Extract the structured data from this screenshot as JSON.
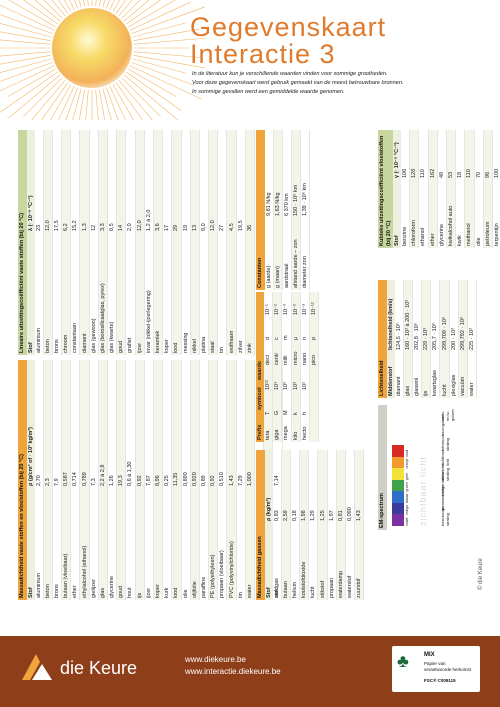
{
  "header": {
    "title_line1": "Gegevenskaart",
    "title_line2": "Interactie 3",
    "intro": [
      "In de literatuur kun je verschillende waarden vinden voor sommige grootheden.",
      "Voor deze gegevenskaart werd gebruik gemaakt van de meest betrouwbare bronnen.",
      "In sommige gevallen werd een gemiddelde waarde genomen."
    ]
  },
  "density": {
    "title": "Massadichtheid vaste stoffen en vloeistoffen (bij 20 °C)",
    "col1": "Stof",
    "col2": "ρ (g/cm³ of · 10³ kg/m³)",
    "rows": [
      [
        "aluminium",
        "2,70"
      ],
      [
        "beton",
        "2,3"
      ],
      [
        "brons",
        "7,9"
      ],
      [
        "butaan (vloeibaar)",
        "0,587"
      ],
      [
        "ether",
        "0,714"
      ],
      [
        "ethylalcohol (ethanol)",
        "0,789"
      ],
      [
        "gietijzer",
        "7,3"
      ],
      [
        "glas",
        "2,2 à 2,8"
      ],
      [
        "glycerine",
        "1,26"
      ],
      [
        "goud",
        "19,3"
      ],
      [
        "hout",
        "0,6 à 1,30"
      ],
      [
        "ijs",
        "0,92"
      ],
      [
        "ijzer",
        "7,87"
      ],
      [
        "koper",
        "8,96"
      ],
      [
        "kurk",
        "0,25"
      ],
      [
        "lood",
        "11,35"
      ],
      [
        "olie",
        "0,890"
      ],
      [
        "olijfolie",
        "0,920"
      ],
      [
        "paraffine",
        "0,89"
      ],
      [
        "PE (polyethyleen)",
        "0,92"
      ],
      [
        "propaan (vloeibaar)",
        "0,510"
      ],
      [
        "PVC (polyvinylchloride)",
        "1,43"
      ],
      [
        "tin",
        "7,29"
      ],
      [
        "water",
        "1,000"
      ],
      [
        "zeewater",
        "1,030"
      ],
      [
        "zilver",
        "10,5"
      ],
      [
        "zink",
        "7,14"
      ]
    ]
  },
  "gas_density": {
    "title": "Massadichtheid gassen",
    "col1": "Stof",
    "col2": "ρ (kg/m³)",
    "rows": [
      [
        "aardgas",
        "0,83"
      ],
      [
        "butaan",
        "2,59"
      ],
      [
        "helium",
        "0,18"
      ],
      [
        "koolstofdioxide",
        "1,98"
      ],
      [
        "lucht",
        "1,29"
      ],
      [
        "stikstof",
        "1,25"
      ],
      [
        "propaan",
        "1,97"
      ],
      [
        "waterdamp",
        "0,81"
      ],
      [
        "waterstof",
        "0,090"
      ],
      [
        "zuurstof",
        "1,43"
      ]
    ]
  },
  "prefix": {
    "col1": "Prefix",
    "col2": "symbool",
    "col3": "waarde",
    "rows": [
      [
        "tera",
        "T",
        "10¹²",
        "",
        "",
        " "
      ],
      [
        "giga",
        "G",
        "10⁹",
        "",
        "",
        ""
      ],
      [
        "mega",
        "M",
        "10⁶",
        "",
        "",
        ""
      ],
      [
        "kilo",
        "k",
        "10³",
        "",
        "",
        ""
      ],
      [
        "hecto",
        "h",
        "10²",
        "",
        "",
        ""
      ]
    ],
    "rows2": [
      [
        "deci",
        "d",
        "10⁻¹"
      ],
      [
        "centi",
        "c",
        "10⁻²"
      ],
      [
        "milli",
        "m",
        "10⁻³"
      ],
      [
        "micro",
        "µ",
        "10⁻⁶"
      ],
      [
        "nano",
        "n",
        "10⁻⁹"
      ],
      [
        "pico",
        "p",
        "10⁻¹²"
      ]
    ]
  },
  "linear": {
    "title": "Lineaire uitzettingscoëfficiënt vaste stoffen (bij 20 °C)",
    "col1": "Stof",
    "col2": "λ (· 10⁻⁶ °C⁻¹)",
    "rows": [
      [
        "aluminium",
        "23"
      ],
      [
        "beton",
        "12,0"
      ],
      [
        "brons",
        "17,5"
      ],
      [
        "chroom",
        "6,2"
      ],
      [
        "constantaan",
        "15,2"
      ],
      [
        "diamant",
        "1,3"
      ],
      [
        "glas (gewoon)",
        "12"
      ],
      [
        "glas (borosilicaatglas, pyrex)",
        "3,3"
      ],
      [
        "glas (kwarts)",
        "0,5"
      ],
      [
        "goud",
        "14"
      ],
      [
        "grafiet",
        "2,0"
      ],
      [
        "ijzer",
        "12,0"
      ],
      [
        "invar (nikkel-ijzerlegering)",
        "1,2 à 2,0"
      ],
      [
        "keramiek",
        "3,6"
      ],
      [
        "koper",
        "17"
      ],
      [
        "lood",
        "29"
      ],
      [
        "messing",
        "19"
      ],
      [
        "nikkel",
        "13"
      ],
      [
        "platina",
        "9,0"
      ],
      [
        "staal",
        "12,0"
      ],
      [
        "tin",
        "27"
      ],
      [
        "wolfraam",
        "4,5"
      ],
      [
        "zilver",
        "19,5"
      ],
      [
        "zink",
        "36"
      ]
    ]
  },
  "constants": {
    "title": "Constanten",
    "rows": [
      [
        "g (aarde)",
        "9,81 N/kg"
      ],
      [
        "g (maan)",
        "1,63 N/kg"
      ],
      [
        "aardstraal",
        "6 370 km"
      ],
      [
        "afstand aarde – zon",
        "150 · 10⁶ km"
      ],
      [
        "diameter zon",
        "1,39 · 10⁶ km"
      ]
    ]
  },
  "cubic": {
    "title": "Kubieke uitzettingscoëfficiënt vloeistoffen (bij 20 °C)",
    "col1": "Stof",
    "col2": "γ (· 10⁻⁵ °C⁻¹)",
    "rows": [
      [
        "benzine",
        "106"
      ],
      [
        "chloroform",
        "128"
      ],
      [
        "ethanol",
        "110"
      ],
      [
        "ether",
        "162"
      ],
      [
        "glycerine",
        "49"
      ],
      [
        "kwikalcohol auto",
        "53"
      ],
      [
        "kwik",
        "18"
      ],
      [
        "methanol",
        "110"
      ],
      [
        "olie",
        "70"
      ],
      [
        "petroleum",
        "96"
      ],
      [
        "terpentijn",
        "100"
      ],
      [
        "water",
        "21"
      ],
      [
        "zeewater",
        "26"
      ]
    ]
  },
  "light": {
    "title": "Lichtsnelheid",
    "col1": "Middenstof",
    "col2": "lichtsnelheid (km/s)",
    "rows": [
      [
        "diamant",
        "124,5 · 10³"
      ],
      [
        "glas",
        "160 · 10³ à 200 · 10³"
      ],
      [
        "glaswol",
        "202,8 · 10³"
      ],
      [
        "ijs",
        "229 · 10³"
      ],
      [
        "kwartsglas",
        "205,7 · 10³"
      ],
      [
        "lucht",
        "299,709 · 10³"
      ],
      [
        "plexiglas",
        "200 · 10³"
      ],
      [
        "vacuüm",
        "299,792 · 10³"
      ],
      [
        "water",
        "225 · 10³"
      ]
    ]
  },
  "em": {
    "title": "EM-spectrum",
    "bands": [
      "kosmische straling",
      "gammastralen",
      "röntgenstralen",
      "ultraviolet-straling",
      "zichtbaar licht",
      "infrarood-straling",
      "microgolven",
      "radio- en tv-golven"
    ],
    "visible": [
      "violet",
      "indigo",
      "blauw",
      "groen",
      "geel",
      "oranje",
      "rood"
    ],
    "visible_colors": [
      "#7b2fa0",
      "#3c3c9e",
      "#2f6fc7",
      "#3ea24a",
      "#f3e23a",
      "#f29a2e",
      "#d72a22"
    ],
    "watermark": "zichtbaar licht"
  },
  "copyright": "© die Keure",
  "footer": {
    "brand": "die Keure",
    "url1": "www.diekeure.be",
    "url2": "www.interactie.diekeure.be",
    "fsc_line1": "MIX",
    "fsc_line2": "Papier van",
    "fsc_line3": "verantwoorde herkomst",
    "fsc_code": "FSC® C009115"
  }
}
